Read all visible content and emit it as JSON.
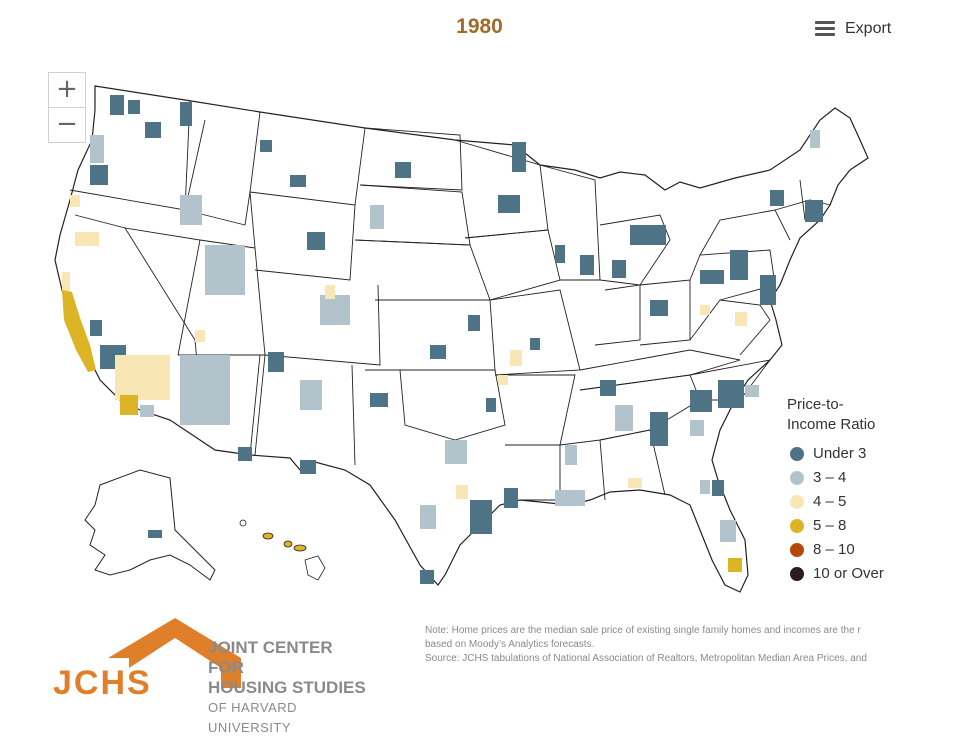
{
  "title": "1980",
  "export": {
    "label": "Export",
    "icon": "hamburger-menu-icon"
  },
  "zoom": {
    "in_label": "+",
    "out_label": "−"
  },
  "legend": {
    "title_line1": "Price-to-",
    "title_line2": "Income Ratio",
    "items": [
      {
        "label": "Under 3",
        "color": "#4e7387"
      },
      {
        "label": "3 – 4",
        "color": "#b3c3cc"
      },
      {
        "label": "4 – 5",
        "color": "#f8e6b4"
      },
      {
        "label": "5 – 8",
        "color": "#dcb425"
      },
      {
        "label": "8 – 10",
        "color": "#b5490c"
      },
      {
        "label": "10 or Over",
        "color": "#2b1a22"
      }
    ]
  },
  "logo": {
    "abbr": "JCHS",
    "line1": "JOINT CENTER FOR",
    "line2": "HOUSING STUDIES",
    "line3": "OF HARVARD UNIVERSITY",
    "color": "#e07f2a"
  },
  "note": {
    "line1": "Note: Home prices are the median sale price of existing single family homes and incomes are the r",
    "line2": "based on Moody’s Analytics forecasts.",
    "line3": "Source: JCHS tabulations of National Association of Realtors, Metropolitan Median Area Prices, and"
  }
}
